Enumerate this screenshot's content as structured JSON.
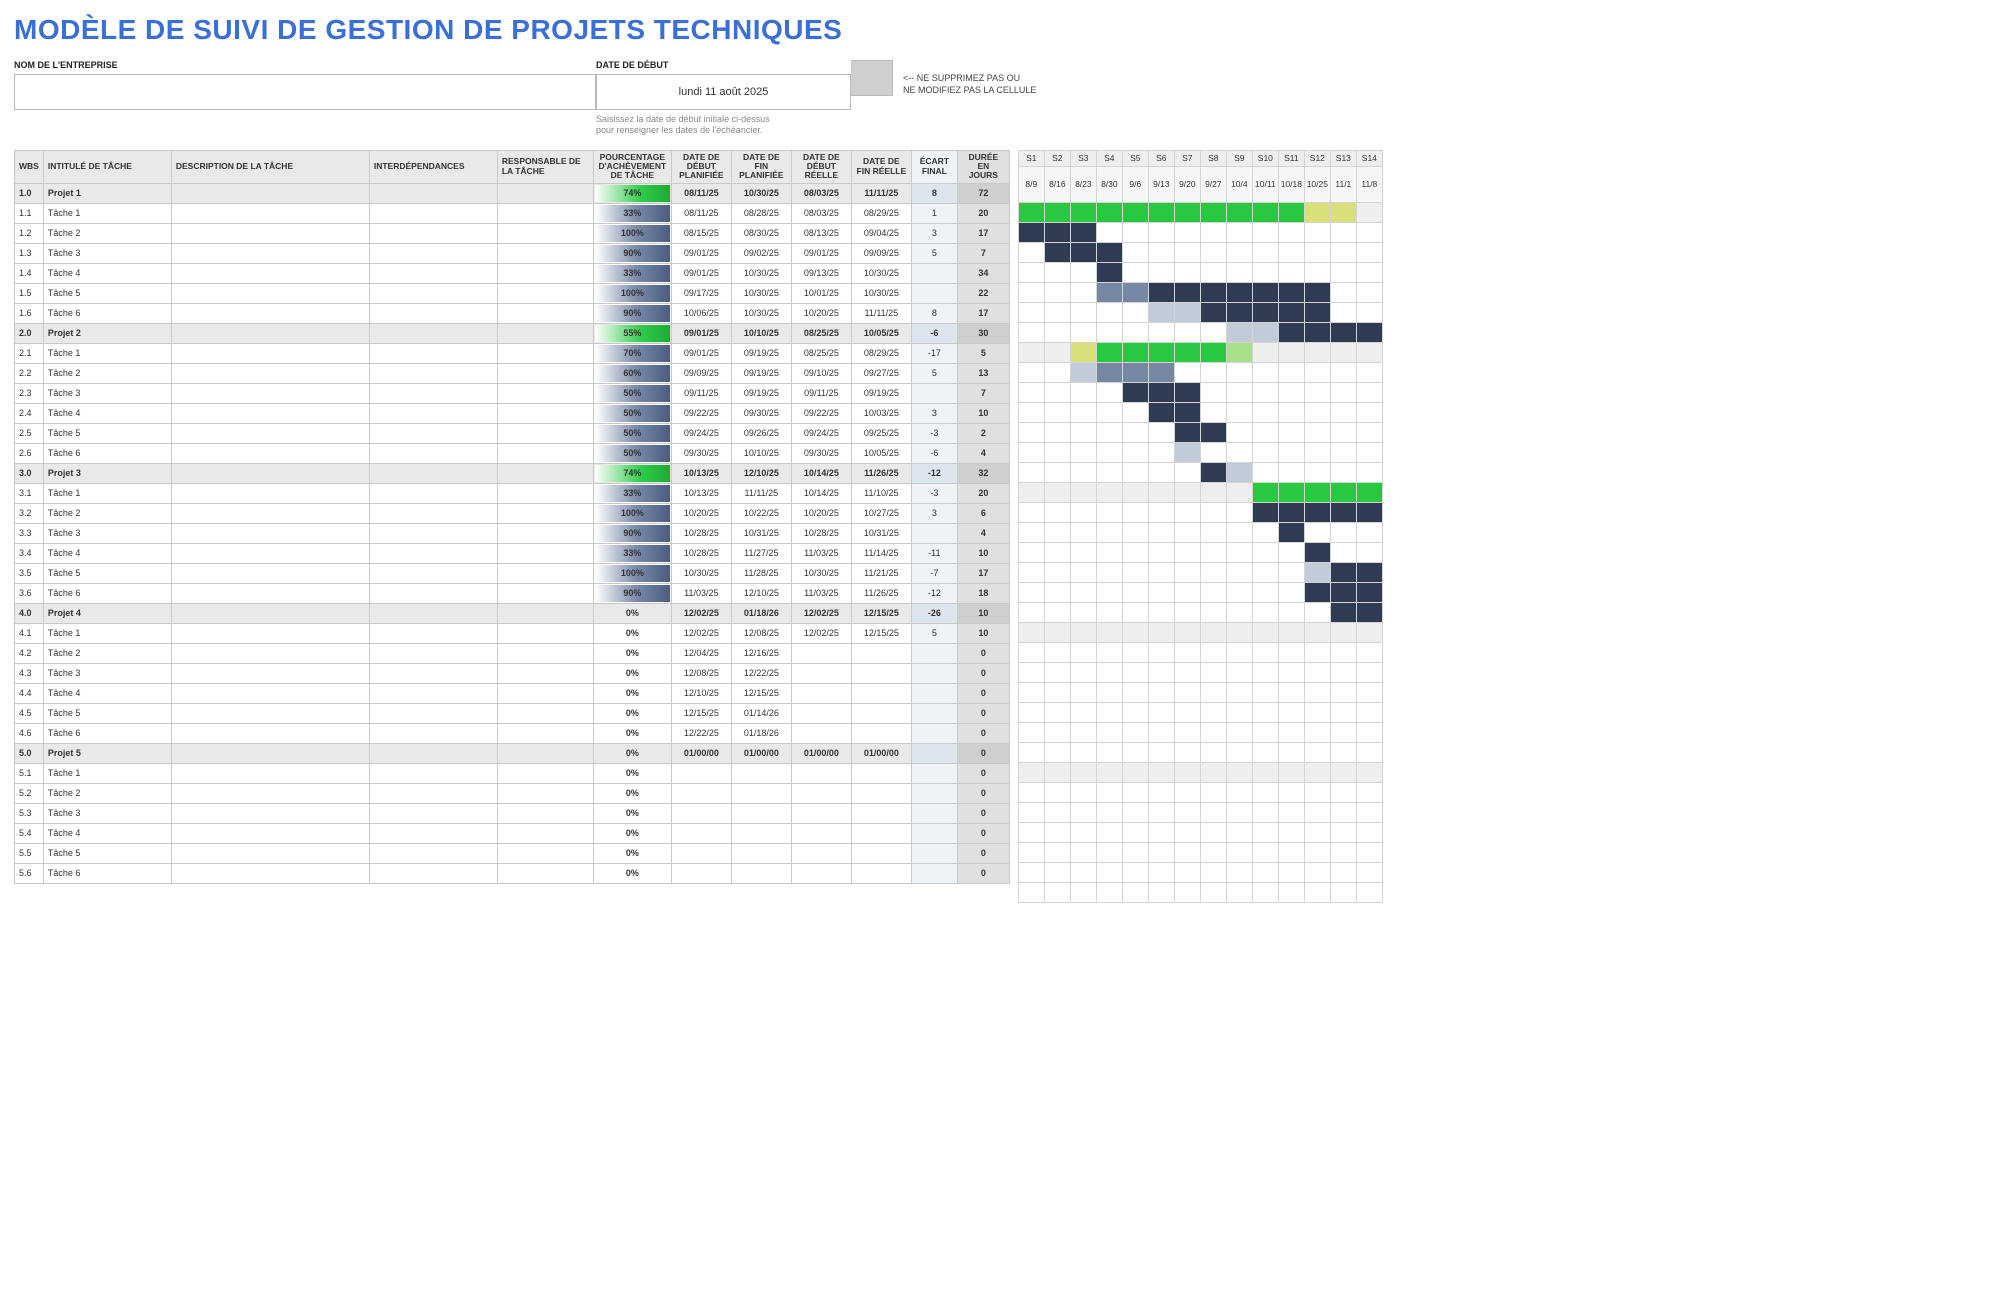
{
  "title": "MODÈLE DE SUIVI DE GESTION DE PROJETS TECHNIQUES",
  "labels": {
    "company": "NOM DE L'ENTREPRISE",
    "start_date": "DATE DE DÉBUT",
    "date_value": "lundi 11 août 2025",
    "note_line1": "<-- NE SUPPRIMEZ PAS OU",
    "note_line2": "NE MODIFIEZ PAS LA CELLULE",
    "hint_line1": "Saisissez la date de début initiale ci-dessus",
    "hint_line2": "pour renseigner les dates de l'échéancier."
  },
  "columns": {
    "wbs": "WBS",
    "task": "INTITULÉ DE TÂCHE",
    "desc": "DESCRIPTION DE LA TÂCHE",
    "dep": "INTERDÉPENDANCES",
    "resp": "RESPONSABLE DE LA TÂCHE",
    "pct": "POURCENTAGE D'ACHÈVEMENT DE TÂCHE",
    "pstart": "DATE DE DÉBUT PLANIFIÉE",
    "pend": "DATE DE FIN PLANIFIÉE",
    "astart": "DATE DE DÉBUT RÉELLE",
    "aend": "DATE DE FIN RÉELLE",
    "ecart": "ÉCART FINAL",
    "dur": "DURÉE EN JOURS"
  },
  "weeks": [
    "S1",
    "S2",
    "S3",
    "S4",
    "S5",
    "S6",
    "S7",
    "S8",
    "S9",
    "S10",
    "S11",
    "S12",
    "S13",
    "S14"
  ],
  "week_dates": [
    "8/9",
    "8/16",
    "8/23",
    "8/30",
    "9/6",
    "9/13",
    "9/20",
    "9/27",
    "10/4",
    "10/11",
    "10/18",
    "10/25",
    "11/1",
    "11/8"
  ],
  "colors": {
    "title": "#3a6fd8",
    "header_bg": "#e9e9e9",
    "border": "#c9c9c9",
    "ecart_bg": "#eef3f8",
    "dur_bg": "#e0e0e0",
    "gantt_dark": "#2f3b52",
    "gantt_mid": "#7788a4",
    "gantt_light": "#c2cbda",
    "gantt_green": "#28c840",
    "gantt_yellow": "#d9e07a",
    "gantt_lightgreen": "#a8e08a",
    "pct_green_grad": [
      "#ffffff",
      "#33cc4d",
      "#1aab33"
    ],
    "pct_blue_grad": [
      "#ffffff",
      "#7a8aa8",
      "#4a5c80"
    ]
  },
  "rows": [
    {
      "wbs": "1.0",
      "task": "Projet 1",
      "pct": "74%",
      "pstart": "08/11/25",
      "pend": "10/30/25",
      "astart": "08/03/25",
      "aend": "11/11/25",
      "ecart": "8",
      "dur": "72",
      "proj": true,
      "bar": "green",
      "gantt": [
        "gn",
        "gn",
        "gn",
        "gn",
        "gn",
        "gn",
        "gn",
        "gn",
        "gn",
        "gn",
        "gn",
        "yl",
        "yl",
        ""
      ]
    },
    {
      "wbs": "1.1",
      "task": "Tâche 1",
      "pct": "33%",
      "pstart": "08/11/25",
      "pend": "08/28/25",
      "astart": "08/03/25",
      "aend": "08/29/25",
      "ecart": "1",
      "dur": "20",
      "bar": "blue",
      "gantt": [
        "dk",
        "dk",
        "dk",
        "",
        "",
        "",
        "",
        "",
        "",
        "",
        "",
        "",
        "",
        ""
      ]
    },
    {
      "wbs": "1.2",
      "task": "Tâche 2",
      "pct": "100%",
      "pstart": "08/15/25",
      "pend": "08/30/25",
      "astart": "08/13/25",
      "aend": "09/04/25",
      "ecart": "3",
      "dur": "17",
      "bar": "blue",
      "gantt": [
        "",
        "dk",
        "dk",
        "dk",
        "",
        "",
        "",
        "",
        "",
        "",
        "",
        "",
        "",
        ""
      ]
    },
    {
      "wbs": "1.3",
      "task": "Tâche 3",
      "pct": "90%",
      "pstart": "09/01/25",
      "pend": "09/02/25",
      "astart": "09/01/25",
      "aend": "09/09/25",
      "ecart": "5",
      "dur": "7",
      "bar": "blue",
      "gantt": [
        "",
        "",
        "",
        "dk",
        "",
        "",
        "",
        "",
        "",
        "",
        "",
        "",
        "",
        ""
      ]
    },
    {
      "wbs": "1.4",
      "task": "Tâche 4",
      "pct": "33%",
      "pstart": "09/01/25",
      "pend": "10/30/25",
      "astart": "09/13/25",
      "aend": "10/30/25",
      "ecart": "",
      "dur": "34",
      "bar": "blue",
      "gantt": [
        "",
        "",
        "",
        "md",
        "md",
        "dk",
        "dk",
        "dk",
        "dk",
        "dk",
        "dk",
        "dk",
        "",
        ""
      ]
    },
    {
      "wbs": "1.5",
      "task": "Tâche 5",
      "pct": "100%",
      "pstart": "09/17/25",
      "pend": "10/30/25",
      "astart": "10/01/25",
      "aend": "10/30/25",
      "ecart": "",
      "dur": "22",
      "bar": "blue",
      "gantt": [
        "",
        "",
        "",
        "",
        "",
        "lt",
        "lt",
        "dk",
        "dk",
        "dk",
        "dk",
        "dk",
        "",
        ""
      ]
    },
    {
      "wbs": "1.6",
      "task": "Tâche 6",
      "pct": "90%",
      "pstart": "10/06/25",
      "pend": "10/30/25",
      "astart": "10/20/25",
      "aend": "11/11/25",
      "ecart": "8",
      "dur": "17",
      "bar": "blue",
      "gantt": [
        "",
        "",
        "",
        "",
        "",
        "",
        "",
        "",
        "lt",
        "lt",
        "dk",
        "dk",
        "dk",
        "dk"
      ]
    },
    {
      "wbs": "2.0",
      "task": "Projet 2",
      "pct": "55%",
      "pstart": "09/01/25",
      "pend": "10/10/25",
      "astart": "08/25/25",
      "aend": "10/05/25",
      "ecart": "-6",
      "dur": "30",
      "proj": true,
      "bar": "green",
      "gantt": [
        "",
        "",
        "yl",
        "gn",
        "gn",
        "gn",
        "gn",
        "gn",
        "lg",
        "",
        "",
        "",
        "",
        ""
      ]
    },
    {
      "wbs": "2.1",
      "task": "Tâche 1",
      "pct": "70%",
      "pstart": "09/01/25",
      "pend": "09/19/25",
      "astart": "08/25/25",
      "aend": "08/29/25",
      "ecart": "-17",
      "dur": "5",
      "bar": "blue",
      "gantt": [
        "",
        "",
        "lt",
        "md",
        "md",
        "md",
        "",
        "",
        "",
        "",
        "",
        "",
        "",
        ""
      ]
    },
    {
      "wbs": "2.2",
      "task": "Tâche 2",
      "pct": "60%",
      "pstart": "09/09/25",
      "pend": "09/19/25",
      "astart": "09/10/25",
      "aend": "09/27/25",
      "ecart": "5",
      "dur": "13",
      "bar": "blue",
      "gantt": [
        "",
        "",
        "",
        "",
        "dk",
        "dk",
        "dk",
        "",
        "",
        "",
        "",
        "",
        "",
        ""
      ]
    },
    {
      "wbs": "2.3",
      "task": "Tâche 3",
      "pct": "50%",
      "pstart": "09/11/25",
      "pend": "09/19/25",
      "astart": "09/11/25",
      "aend": "09/19/25",
      "ecart": "",
      "dur": "7",
      "bar": "blue",
      "gantt": [
        "",
        "",
        "",
        "",
        "",
        "dk",
        "dk",
        "",
        "",
        "",
        "",
        "",
        "",
        ""
      ]
    },
    {
      "wbs": "2.4",
      "task": "Tâche 4",
      "pct": "50%",
      "pstart": "09/22/25",
      "pend": "09/30/25",
      "astart": "09/22/25",
      "aend": "10/03/25",
      "ecart": "3",
      "dur": "10",
      "bar": "blue",
      "gantt": [
        "",
        "",
        "",
        "",
        "",
        "",
        "dk",
        "dk",
        "",
        "",
        "",
        "",
        "",
        ""
      ]
    },
    {
      "wbs": "2.5",
      "task": "Tâche 5",
      "pct": "50%",
      "pstart": "09/24/25",
      "pend": "09/26/25",
      "astart": "09/24/25",
      "aend": "09/25/25",
      "ecart": "-3",
      "dur": "2",
      "bar": "blue",
      "gantt": [
        "",
        "",
        "",
        "",
        "",
        "",
        "lt",
        "",
        "",
        "",
        "",
        "",
        "",
        ""
      ]
    },
    {
      "wbs": "2.6",
      "task": "Tâche 6",
      "pct": "50%",
      "pstart": "09/30/25",
      "pend": "10/10/25",
      "astart": "09/30/25",
      "aend": "10/05/25",
      "ecart": "-6",
      "dur": "4",
      "bar": "blue",
      "gantt": [
        "",
        "",
        "",
        "",
        "",
        "",
        "",
        "dk",
        "lt",
        "",
        "",
        "",
        "",
        ""
      ]
    },
    {
      "wbs": "3.0",
      "task": "Projet 3",
      "pct": "74%",
      "pstart": "10/13/25",
      "pend": "12/10/25",
      "astart": "10/14/25",
      "aend": "11/26/25",
      "ecart": "-12",
      "dur": "32",
      "proj": true,
      "bar": "green",
      "gantt": [
        "",
        "",
        "",
        "",
        "",
        "",
        "",
        "",
        "",
        "gn",
        "gn",
        "gn",
        "gn",
        "gn"
      ]
    },
    {
      "wbs": "3.1",
      "task": "Tâche 1",
      "pct": "33%",
      "pstart": "10/13/25",
      "pend": "11/11/25",
      "astart": "10/14/25",
      "aend": "11/10/25",
      "ecart": "-3",
      "dur": "20",
      "bar": "blue",
      "gantt": [
        "",
        "",
        "",
        "",
        "",
        "",
        "",
        "",
        "",
        "dk",
        "dk",
        "dk",
        "dk",
        "dk"
      ]
    },
    {
      "wbs": "3.2",
      "task": "Tâche 2",
      "pct": "100%",
      "pstart": "10/20/25",
      "pend": "10/22/25",
      "astart": "10/20/25",
      "aend": "10/27/25",
      "ecart": "3",
      "dur": "6",
      "bar": "blue",
      "gantt": [
        "",
        "",
        "",
        "",
        "",
        "",
        "",
        "",
        "",
        "",
        "dk",
        "",
        "",
        ""
      ]
    },
    {
      "wbs": "3.3",
      "task": "Tâche 3",
      "pct": "90%",
      "pstart": "10/28/25",
      "pend": "10/31/25",
      "astart": "10/28/25",
      "aend": "10/31/25",
      "ecart": "",
      "dur": "4",
      "bar": "blue",
      "gantt": [
        "",
        "",
        "",
        "",
        "",
        "",
        "",
        "",
        "",
        "",
        "",
        "dk",
        "",
        ""
      ]
    },
    {
      "wbs": "3.4",
      "task": "Tâche 4",
      "pct": "33%",
      "pstart": "10/28/25",
      "pend": "11/27/25",
      "astart": "11/03/25",
      "aend": "11/14/25",
      "ecart": "-11",
      "dur": "10",
      "bar": "blue",
      "gantt": [
        "",
        "",
        "",
        "",
        "",
        "",
        "",
        "",
        "",
        "",
        "",
        "lt",
        "dk",
        "dk"
      ]
    },
    {
      "wbs": "3.5",
      "task": "Tâche 5",
      "pct": "100%",
      "pstart": "10/30/25",
      "pend": "11/28/25",
      "astart": "10/30/25",
      "aend": "11/21/25",
      "ecart": "-7",
      "dur": "17",
      "bar": "blue",
      "gantt": [
        "",
        "",
        "",
        "",
        "",
        "",
        "",
        "",
        "",
        "",
        "",
        "dk",
        "dk",
        "dk"
      ]
    },
    {
      "wbs": "3.6",
      "task": "Tâche 6",
      "pct": "90%",
      "pstart": "11/03/25",
      "pend": "12/10/25",
      "astart": "11/03/25",
      "aend": "11/26/25",
      "ecart": "-12",
      "dur": "18",
      "bar": "blue",
      "gantt": [
        "",
        "",
        "",
        "",
        "",
        "",
        "",
        "",
        "",
        "",
        "",
        "",
        "dk",
        "dk"
      ]
    },
    {
      "wbs": "4.0",
      "task": "Projet 4",
      "pct": "0%",
      "pstart": "12/02/25",
      "pend": "01/18/26",
      "astart": "12/02/25",
      "aend": "12/15/25",
      "ecart": "-26",
      "dur": "10",
      "proj": true,
      "bar": "none",
      "gantt": [
        "",
        "",
        "",
        "",
        "",
        "",
        "",
        "",
        "",
        "",
        "",
        "",
        "",
        ""
      ]
    },
    {
      "wbs": "4.1",
      "task": "Tâche 1",
      "pct": "0%",
      "pstart": "12/02/25",
      "pend": "12/08/25",
      "astart": "12/02/25",
      "aend": "12/15/25",
      "ecart": "5",
      "dur": "10",
      "bar": "none",
      "gantt": [
        "",
        "",
        "",
        "",
        "",
        "",
        "",
        "",
        "",
        "",
        "",
        "",
        "",
        ""
      ]
    },
    {
      "wbs": "4.2",
      "task": "Tâche 2",
      "pct": "0%",
      "pstart": "12/04/25",
      "pend": "12/16/25",
      "astart": "",
      "aend": "",
      "ecart": "",
      "dur": "0",
      "bar": "none",
      "gantt": [
        "",
        "",
        "",
        "",
        "",
        "",
        "",
        "",
        "",
        "",
        "",
        "",
        "",
        ""
      ]
    },
    {
      "wbs": "4.3",
      "task": "Tâche 3",
      "pct": "0%",
      "pstart": "12/08/25",
      "pend": "12/22/25",
      "astart": "",
      "aend": "",
      "ecart": "",
      "dur": "0",
      "bar": "none",
      "gantt": [
        "",
        "",
        "",
        "",
        "",
        "",
        "",
        "",
        "",
        "",
        "",
        "",
        "",
        ""
      ]
    },
    {
      "wbs": "4.4",
      "task": "Tâche 4",
      "pct": "0%",
      "pstart": "12/10/25",
      "pend": "12/15/25",
      "astart": "",
      "aend": "",
      "ecart": "",
      "dur": "0",
      "bar": "none",
      "gantt": [
        "",
        "",
        "",
        "",
        "",
        "",
        "",
        "",
        "",
        "",
        "",
        "",
        "",
        ""
      ]
    },
    {
      "wbs": "4.5",
      "task": "Tâche 5",
      "pct": "0%",
      "pstart": "12/15/25",
      "pend": "01/14/26",
      "astart": "",
      "aend": "",
      "ecart": "",
      "dur": "0",
      "bar": "none",
      "gantt": [
        "",
        "",
        "",
        "",
        "",
        "",
        "",
        "",
        "",
        "",
        "",
        "",
        "",
        ""
      ]
    },
    {
      "wbs": "4.6",
      "task": "Tâche 6",
      "pct": "0%",
      "pstart": "12/22/25",
      "pend": "01/18/26",
      "astart": "",
      "aend": "",
      "ecart": "",
      "dur": "0",
      "bar": "none",
      "gantt": [
        "",
        "",
        "",
        "",
        "",
        "",
        "",
        "",
        "",
        "",
        "",
        "",
        "",
        ""
      ]
    },
    {
      "wbs": "5.0",
      "task": "Projet 5",
      "pct": "0%",
      "pstart": "01/00/00",
      "pend": "01/00/00",
      "astart": "01/00/00",
      "aend": "01/00/00",
      "ecart": "",
      "dur": "0",
      "proj": true,
      "bar": "none",
      "gantt": [
        "",
        "",
        "",
        "",
        "",
        "",
        "",
        "",
        "",
        "",
        "",
        "",
        "",
        ""
      ]
    },
    {
      "wbs": "5.1",
      "task": "Tâche 1",
      "pct": "0%",
      "pstart": "",
      "pend": "",
      "astart": "",
      "aend": "",
      "ecart": "",
      "dur": "0",
      "bar": "none",
      "gantt": [
        "",
        "",
        "",
        "",
        "",
        "",
        "",
        "",
        "",
        "",
        "",
        "",
        "",
        ""
      ]
    },
    {
      "wbs": "5.2",
      "task": "Tâche 2",
      "pct": "0%",
      "pstart": "",
      "pend": "",
      "astart": "",
      "aend": "",
      "ecart": "",
      "dur": "0",
      "bar": "none",
      "gantt": [
        "",
        "",
        "",
        "",
        "",
        "",
        "",
        "",
        "",
        "",
        "",
        "",
        "",
        ""
      ]
    },
    {
      "wbs": "5.3",
      "task": "Tâche 3",
      "pct": "0%",
      "pstart": "",
      "pend": "",
      "astart": "",
      "aend": "",
      "ecart": "",
      "dur": "0",
      "bar": "none",
      "gantt": [
        "",
        "",
        "",
        "",
        "",
        "",
        "",
        "",
        "",
        "",
        "",
        "",
        "",
        ""
      ]
    },
    {
      "wbs": "5.4",
      "task": "Tâche 4",
      "pct": "0%",
      "pstart": "",
      "pend": "",
      "astart": "",
      "aend": "",
      "ecart": "",
      "dur": "0",
      "bar": "none",
      "gantt": [
        "",
        "",
        "",
        "",
        "",
        "",
        "",
        "",
        "",
        "",
        "",
        "",
        "",
        ""
      ]
    },
    {
      "wbs": "5.5",
      "task": "Tâche 5",
      "pct": "0%",
      "pstart": "",
      "pend": "",
      "astart": "",
      "aend": "",
      "ecart": "",
      "dur": "0",
      "bar": "none",
      "gantt": [
        "",
        "",
        "",
        "",
        "",
        "",
        "",
        "",
        "",
        "",
        "",
        "",
        "",
        ""
      ]
    },
    {
      "wbs": "5.6",
      "task": "Tâche 6",
      "pct": "0%",
      "pstart": "",
      "pend": "",
      "astart": "",
      "aend": "",
      "ecart": "",
      "dur": "0",
      "bar": "none",
      "gantt": [
        "",
        "",
        "",
        "",
        "",
        "",
        "",
        "",
        "",
        "",
        "",
        "",
        "",
        ""
      ]
    }
  ]
}
